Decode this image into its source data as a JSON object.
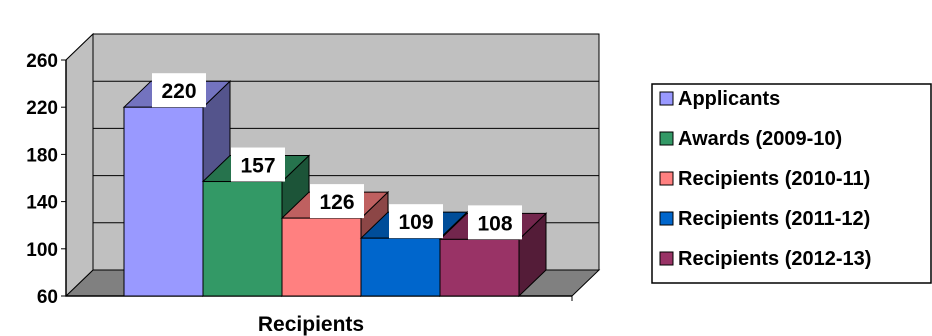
{
  "chart_data": {
    "type": "bar",
    "style": "3d-clustered",
    "categories": [
      "Recipients"
    ],
    "xlabel": "Recipients",
    "ylabel": "",
    "ylim": [
      60,
      260
    ],
    "yticks": [
      60,
      100,
      140,
      180,
      220,
      260
    ],
    "grid": true,
    "legend_position": "right",
    "series": [
      {
        "name": "Applicants",
        "value": 220,
        "label": "220",
        "color": "#9999ff"
      },
      {
        "name": "Awards (2009-10)",
        "value": 157,
        "label": "157",
        "color": "#339966"
      },
      {
        "name": "Recipients (2010-11)",
        "value": 126,
        "label": "126",
        "color": "#ff8080"
      },
      {
        "name": "Recipients (2011-12)",
        "value": 109,
        "label": "109",
        "color": "#0066cc"
      },
      {
        "name": "Recipients (2012-13)",
        "value": 108,
        "label": "108",
        "color": "#993366"
      }
    ],
    "wall_color": "#c0c0c0",
    "floor_color": "#808080"
  }
}
